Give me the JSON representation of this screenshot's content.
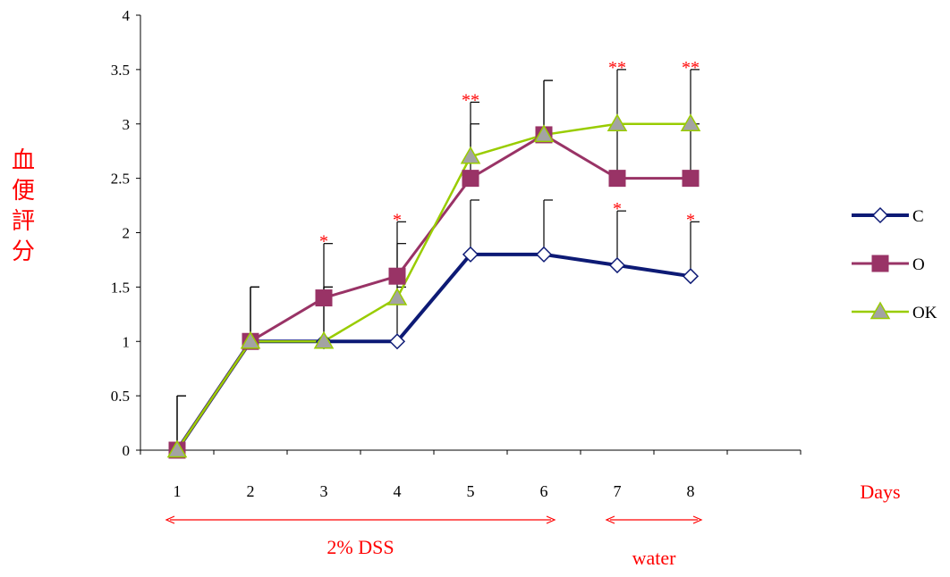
{
  "chart_data": {
    "type": "line",
    "title": "",
    "ylabel": "血便評分",
    "xlabel": "Days",
    "categories": [
      "1",
      "2",
      "3",
      "4",
      "5",
      "6",
      "7",
      "8"
    ],
    "ylim": [
      0,
      4
    ],
    "yticks": [
      "0",
      "0.5",
      "1",
      "1.5",
      "2",
      "2.5",
      "3",
      "3.5",
      "4"
    ],
    "legend_position": "right",
    "grid": false,
    "series": [
      {
        "name": "C",
        "color": "#0d1a75",
        "marker": "diamond-open",
        "values": [
          0,
          1,
          1,
          1,
          1.8,
          1.8,
          1.7,
          1.6
        ],
        "error": [
          0.5,
          0.5,
          0.5,
          0.5,
          0.5,
          0.5,
          0.5,
          0.5
        ]
      },
      {
        "name": "O",
        "color": "#993366",
        "marker": "square",
        "values": [
          0,
          1,
          1.4,
          1.6,
          2.5,
          2.9,
          2.5,
          2.5
        ],
        "error": [
          0.5,
          0.5,
          0.5,
          0.5,
          0.5,
          0.5,
          0.5,
          0.5
        ]
      },
      {
        "name": "OK",
        "color": "#99cc00",
        "marker": "triangle",
        "values": [
          0,
          1,
          1,
          1.4,
          2.7,
          2.9,
          3.0,
          3.0
        ],
        "error": [
          0.5,
          0.5,
          0.5,
          0.5,
          0.5,
          0.5,
          0.5,
          0.5
        ]
      }
    ],
    "annotations": {
      "significance": [
        {
          "day": "3",
          "text": "*",
          "at": 1.9
        },
        {
          "day": "4",
          "text": "*",
          "at": 2.1
        },
        {
          "day": "5",
          "text": "**",
          "at": 3.2
        },
        {
          "day": "7",
          "text": "**",
          "at": 3.5
        },
        {
          "day": "7",
          "text": "*",
          "at": 2.2
        },
        {
          "day": "8",
          "text": "**",
          "at": 3.5
        },
        {
          "day": "8",
          "text": "*",
          "at": 2.1
        }
      ],
      "periods": [
        {
          "label": "2% DSS",
          "from": "1",
          "to": "6"
        },
        {
          "label": "water",
          "from": "7",
          "to": "8"
        }
      ],
      "annotation_color": "#ff0000"
    }
  }
}
